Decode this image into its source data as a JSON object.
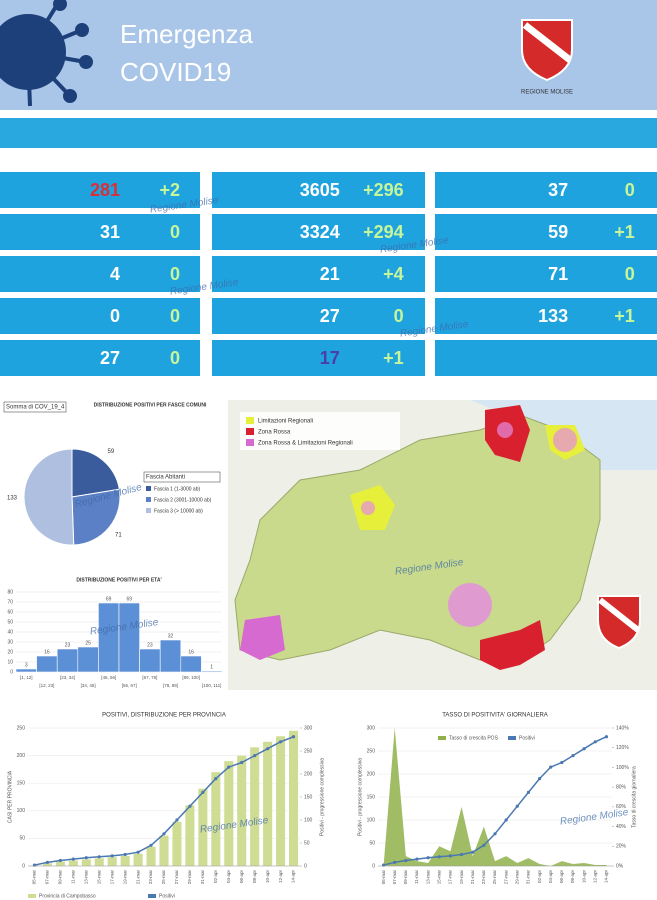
{
  "header": {
    "title_line1": "Emergenza",
    "title_line2": "COVID19",
    "logo_text": "REGIONE MOLISE"
  },
  "watermark": "Regione Molise",
  "stats": {
    "rows": [
      [
        {
          "value": 281,
          "delta": "+2"
        },
        {
          "value": 3605,
          "delta": "+296"
        },
        {
          "value": 37,
          "delta": "0"
        }
      ],
      [
        {
          "value": 31,
          "delta": "0"
        },
        {
          "value": 3324,
          "delta": "+294"
        },
        {
          "value": 59,
          "delta": "+1"
        }
      ],
      [
        {
          "value": 4,
          "delta": "0"
        },
        {
          "value": 21,
          "delta": "+4"
        },
        {
          "value": 71,
          "delta": "0"
        }
      ],
      [
        {
          "value": 0,
          "delta": "0"
        },
        {
          "value": 27,
          "delta": "0"
        },
        {
          "value": 133,
          "delta": "+1"
        }
      ],
      [
        {
          "value": 27,
          "delta": "0"
        },
        {
          "value": 17,
          "delta": "+1"
        }
      ]
    ]
  },
  "map": {
    "legend": [
      "Limitazioni Regionali",
      "Zona Rossa",
      "Zona Rossa & Limitazioni Regionali"
    ],
    "legend_colors": [
      "#e6ef3a",
      "#d8202e",
      "#d66ad0"
    ]
  },
  "chart_data": [
    {
      "type": "pie",
      "title": "DISTRIBUZIONE POSITIVI PER FASCE COMUNI",
      "field_label": "Somma di COV_19_4",
      "legend_title": "Fascia Abitanti",
      "categories": [
        "Fascia 1 (1-3000 ab)",
        "Fascia 2 (3001-10000 ab)",
        "Fascia 3 (> 10000 ab)"
      ],
      "values": [
        59,
        71,
        133
      ],
      "colors": [
        "#3b5c9c",
        "#5b80c6",
        "#aebfe0"
      ]
    },
    {
      "type": "bar",
      "title": "DISTRIBUZIONE POSITIVI PER ETA'",
      "categories": [
        "[1, 12]",
        "[12, 23]",
        "[23, 34]",
        "[34, 45]",
        "[45, 56]",
        "[56, 67]",
        "[67, 78]",
        "[78, 89]",
        "[89, 100]",
        "[100, 111]"
      ],
      "values": [
        3,
        16,
        23,
        25,
        69,
        69,
        23,
        32,
        16,
        1
      ],
      "color": "#5b8fd6",
      "ylim": [
        0,
        80
      ],
      "yticks": [
        0,
        10,
        20,
        30,
        40,
        50,
        60,
        70,
        80
      ]
    },
    {
      "type": "combo",
      "title": "POSITIVI, DISTRIBUZIONE PER PROVINCIA",
      "categories": [
        "05-mar",
        "07-mar",
        "09-mar",
        "11-mar",
        "13-mar",
        "15-mar",
        "17-mar",
        "19-mar",
        "21-mar",
        "23-mar",
        "25-mar",
        "27-mar",
        "29-mar",
        "31-mar",
        "02-apr",
        "04-apr",
        "06-apr",
        "08-apr",
        "10-apr",
        "12-apr",
        "14-apr"
      ],
      "series": [
        {
          "name": "Provincia di Campobasso",
          "kind": "bar",
          "color": "#cfdc94",
          "values": [
            1,
            5,
            8,
            10,
            12,
            14,
            16,
            18,
            22,
            35,
            55,
            80,
            110,
            140,
            170,
            190,
            200,
            215,
            225,
            235,
            245
          ]
        },
        {
          "name": "Positivi",
          "kind": "line",
          "axis": "y2",
          "color": "#4a78b0",
          "values": [
            2,
            8,
            12,
            15,
            18,
            20,
            22,
            25,
            30,
            45,
            70,
            100,
            130,
            160,
            190,
            215,
            225,
            240,
            255,
            270,
            281
          ]
        }
      ],
      "ylim": [
        0,
        250
      ],
      "yticks": [
        0,
        50,
        100,
        150,
        200,
        250
      ],
      "y2lim": [
        0,
        300
      ],
      "y2ticks": [
        0,
        50,
        100,
        150,
        200,
        250,
        300
      ],
      "ylabel": "CASI PER PROVINCIA",
      "y2label": "Positivi - progressione complessiva"
    },
    {
      "type": "combo",
      "title": "TASSO DI POSITIVITA' GIORNALIERA",
      "categories": [
        "05-mar",
        "07-mar",
        "09-mar",
        "11-mar",
        "13-mar",
        "15-mar",
        "17-mar",
        "19-mar",
        "21-mar",
        "23-mar",
        "25-mar",
        "27-mar",
        "29-mar",
        "31-mar",
        "02-apr",
        "04-apr",
        "06-apr",
        "08-apr",
        "10-apr",
        "12-apr",
        "14-apr"
      ],
      "series": [
        {
          "name": "Tasso di crescita POS",
          "kind": "area",
          "axis": "y2",
          "color": "#8fb04a",
          "values": [
            0,
            140,
            10,
            5,
            3,
            20,
            15,
            60,
            10,
            40,
            5,
            10,
            3,
            8,
            2,
            0,
            5,
            2,
            3,
            1,
            1
          ]
        },
        {
          "name": "Positivi",
          "kind": "line",
          "color": "#4a78b0",
          "values": [
            2,
            8,
            12,
            15,
            18,
            20,
            22,
            25,
            30,
            45,
            70,
            100,
            130,
            160,
            190,
            215,
            225,
            240,
            255,
            270,
            281
          ]
        }
      ],
      "ylim": [
        0,
        300
      ],
      "yticks": [
        0,
        50,
        100,
        150,
        200,
        250,
        300
      ],
      "y2lim": [
        0,
        140
      ],
      "y2ticks": [
        {
          "value": 0,
          "label": "0%"
        },
        {
          "value": 20,
          "label": "20%"
        },
        {
          "value": 40,
          "label": "40%"
        },
        {
          "value": 60,
          "label": "60%"
        },
        {
          "value": 80,
          "label": "80%"
        },
        {
          "value": 100,
          "label": "100%"
        },
        {
          "value": 120,
          "label": "120%"
        },
        {
          "value": 140,
          "label": "140%"
        }
      ],
      "ylabel": "Positivi - progressione complessiva",
      "y2label": "Tasso di crescita giornaliera"
    }
  ]
}
